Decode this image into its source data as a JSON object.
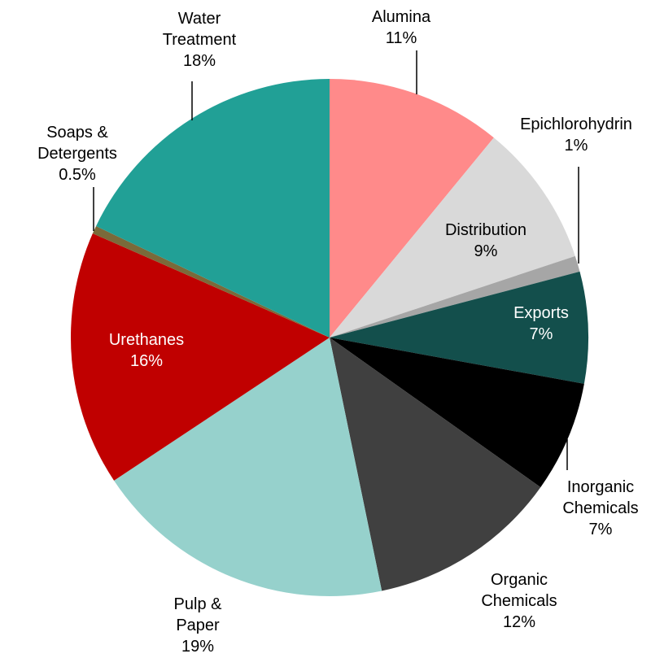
{
  "chart_data": {
    "type": "pie",
    "categories": [
      "Alumina",
      "Distribution",
      "Epichlorohydrin",
      "Exports",
      "Inorganic Chemicals",
      "Organic Chemicals",
      "Pulp & Paper",
      "Urethanes",
      "Soaps & Detergents",
      "Water Treatment"
    ],
    "values": [
      11,
      9,
      1,
      7,
      7,
      12,
      19,
      16,
      0.5,
      18
    ],
    "value_labels": [
      "11%",
      "9%",
      "1%",
      "7%",
      "7%",
      "12%",
      "19%",
      "16%",
      "0.5%",
      "18%"
    ],
    "colors": [
      "#ff8a8a",
      "#d9d9d9",
      "#a6a6a6",
      "#134f4c",
      "#000000",
      "#404040",
      "#96d1cc",
      "#c00000",
      "#7a6a3a",
      "#21a096"
    ]
  }
}
